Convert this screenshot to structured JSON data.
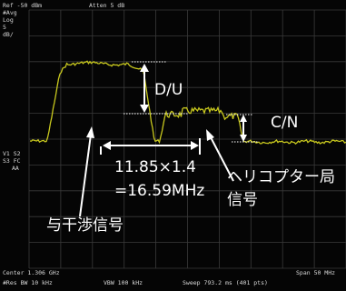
{
  "analyzer": {
    "ref_level": "Ref -50 dBm",
    "atten": "Atten 5 dB",
    "avg_mode": "#Avg",
    "scale_type": "Log",
    "scale_value": "5",
    "scale_unit": "dB/",
    "v1s2": "V1  S2",
    "s3fc": "S3  FC",
    "aa": "AA",
    "center": "Center 1.306 GHz",
    "res_bw": "#Res BW 10 kHz",
    "vbw": "VBW 100 kHz",
    "span": "Span 50 MHz",
    "sweep": "Sweep 793.2 ms (401 pts)"
  },
  "annotations": {
    "du": "D/U",
    "cn": "C/N",
    "bw_calc_line1": "11.85×1.4",
    "bw_calc_line2": "=16.59MHz",
    "heli_line1": "ヘリコプター局",
    "heli_line2": "信号",
    "interference": "与干渉信号"
  },
  "colors": {
    "trace": "#c8c81e",
    "grid": "#3a3a3a",
    "annotation": "#ffffff"
  }
}
